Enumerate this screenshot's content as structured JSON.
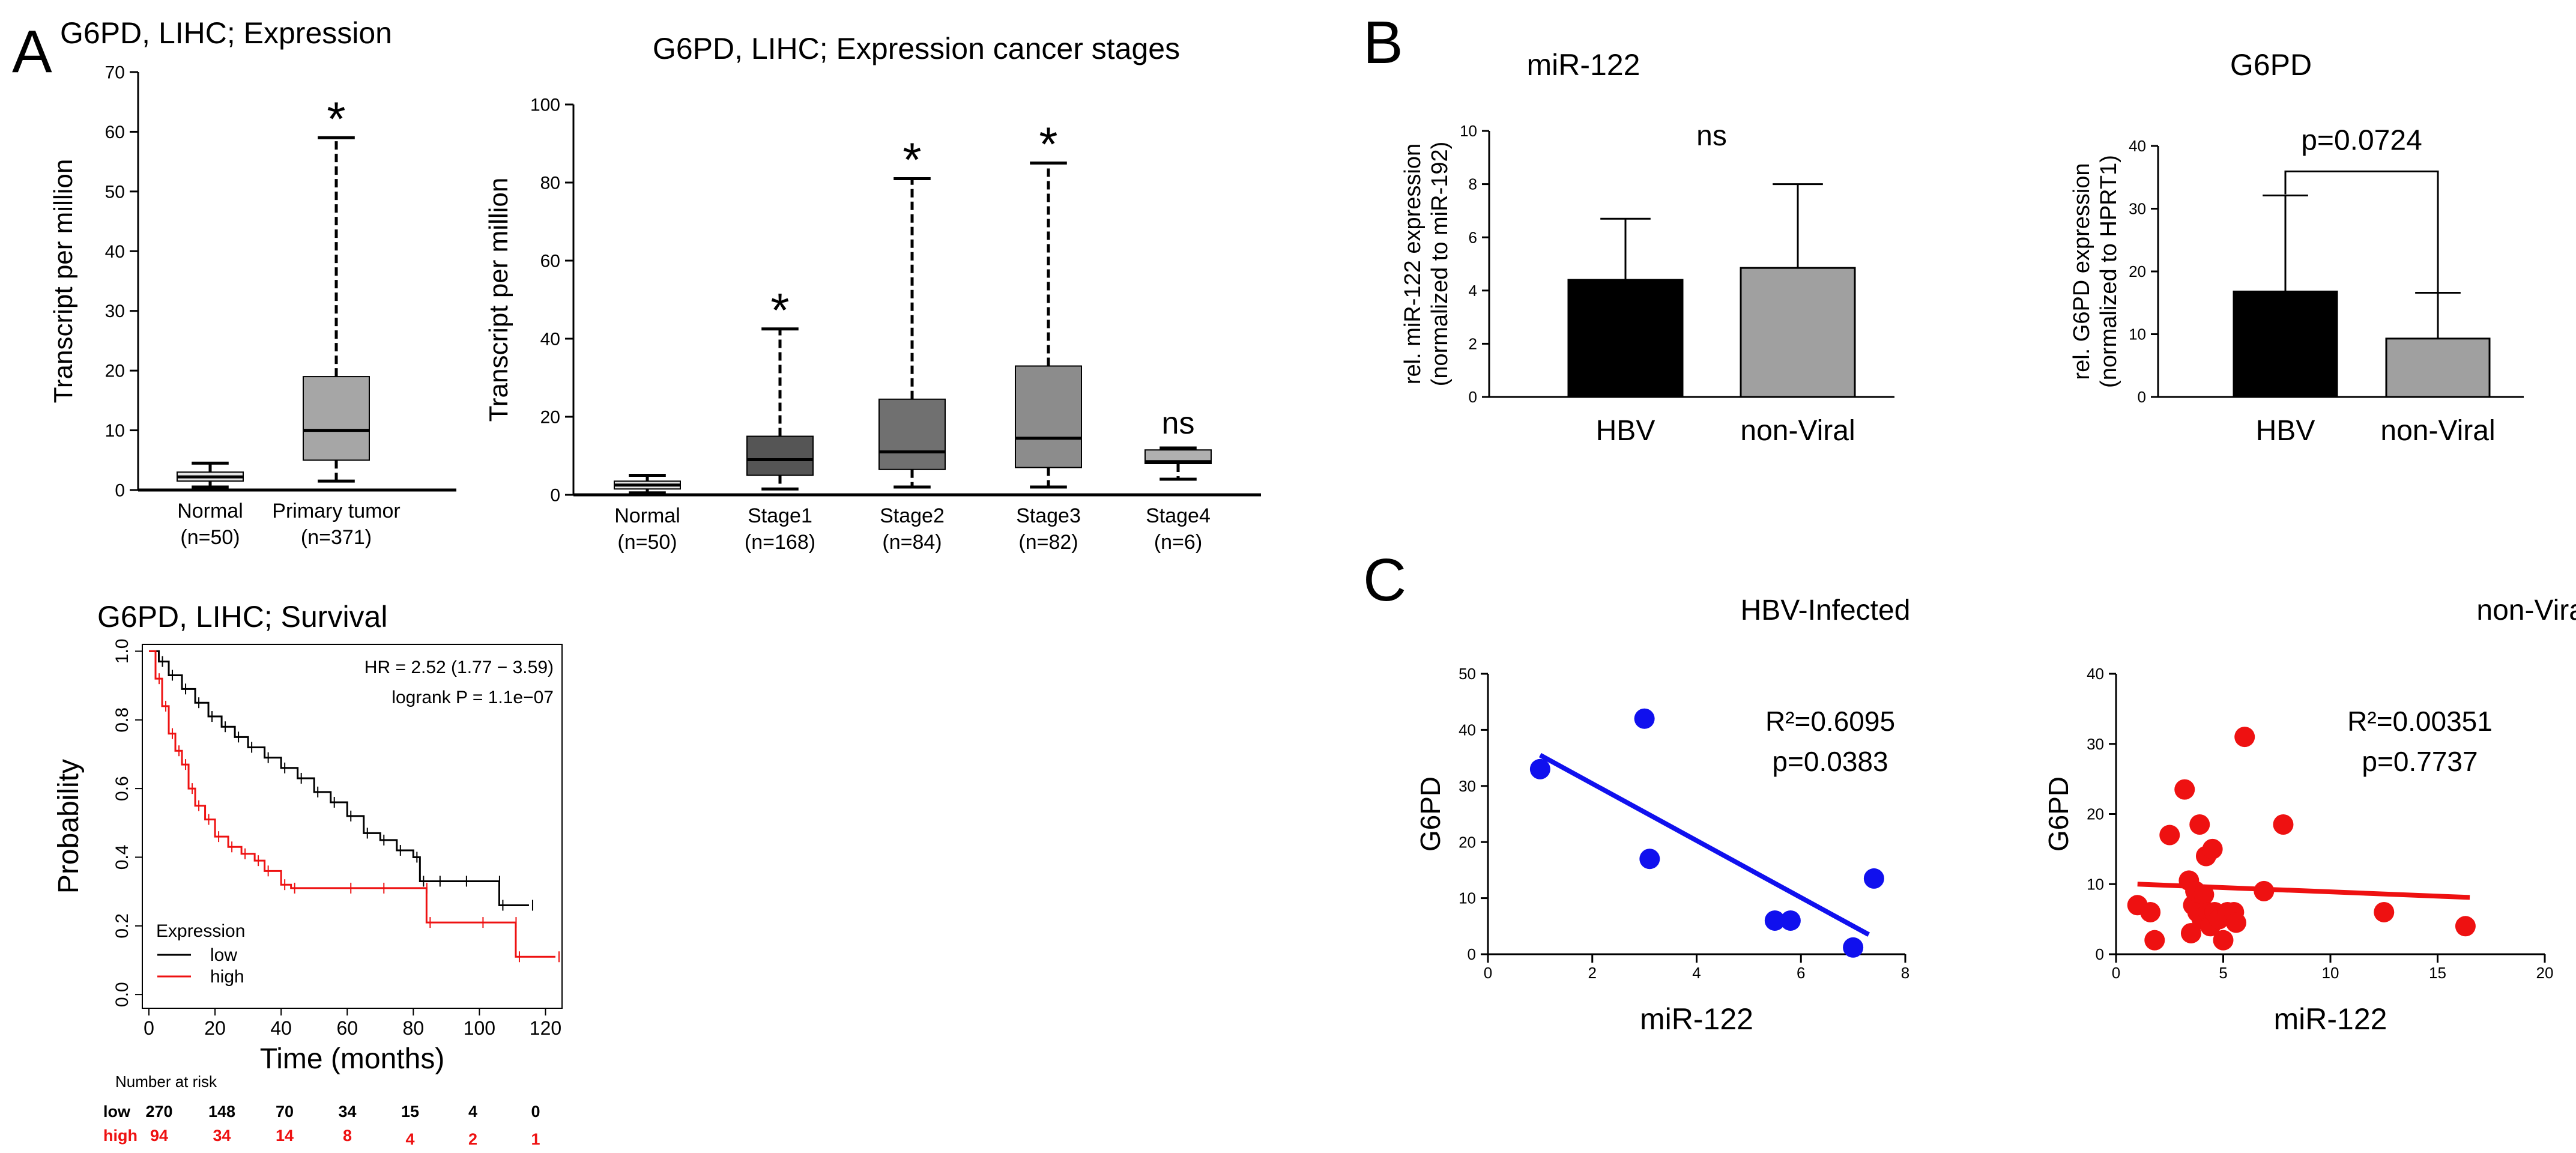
{
  "panel_labels": {
    "a": "A",
    "b": "B",
    "c": "C"
  },
  "colors": {
    "black": "#000000",
    "dark_gray": "#555555",
    "mid_gray": "#999999",
    "light_gray": "#c8c8c8",
    "blue": "#1010ee",
    "red": "#ee1111",
    "km_low": "#000000",
    "km_high": "#ee1111"
  },
  "chart_data": [
    {
      "id": "a1",
      "type": "boxplot",
      "title": "G6PD, LIHC; Expression",
      "ylabel": "Transcript per million",
      "xlabel": "",
      "ylim": [
        0,
        70
      ],
      "yticks": [
        0,
        10,
        20,
        30,
        40,
        50,
        60,
        70
      ],
      "categories": [
        {
          "label": "Normal",
          "n": "(n=50)",
          "min": 0.5,
          "q1": 1.5,
          "median": 2.2,
          "q3": 3.0,
          "max": 4.5,
          "color": "#e6e6e6",
          "sig": ""
        },
        {
          "label": "Primary tumor",
          "n": "(n=371)",
          "min": 1.5,
          "q1": 5.0,
          "median": 10.0,
          "q3": 19.0,
          "max": 59.0,
          "color": "#a6a6a6",
          "sig": "*"
        }
      ]
    },
    {
      "id": "a2",
      "type": "boxplot",
      "title": "G6PD, LIHC; Expression cancer stages",
      "ylabel": "Transcript per million",
      "xlabel": "",
      "ylim": [
        0,
        100
      ],
      "yticks": [
        0,
        20,
        40,
        60,
        80,
        100
      ],
      "categories": [
        {
          "label": "Normal",
          "n": "(n=50)",
          "min": 0.5,
          "q1": 1.5,
          "median": 2.5,
          "q3": 3.5,
          "max": 5.0,
          "color": "#e6e6e6",
          "sig": ""
        },
        {
          "label": "Stage1",
          "n": "(n=168)",
          "min": 1.5,
          "q1": 5.0,
          "median": 9.0,
          "q3": 15.0,
          "max": 42.5,
          "color": "#555555",
          "sig": "*"
        },
        {
          "label": "Stage2",
          "n": "(n=84)",
          "min": 2.0,
          "q1": 6.5,
          "median": 11.0,
          "q3": 24.5,
          "max": 81.0,
          "color": "#707070",
          "sig": "*"
        },
        {
          "label": "Stage3",
          "n": "(n=82)",
          "min": 2.0,
          "q1": 7.0,
          "median": 14.5,
          "q3": 33.0,
          "max": 85.0,
          "color": "#8c8c8c",
          "sig": "*"
        },
        {
          "label": "Stage4",
          "n": "(n=6)",
          "min": 4.0,
          "q1": 8.0,
          "median": 8.5,
          "q3": 11.5,
          "max": 12.0,
          "color": "#b0b0b0",
          "sig": "ns"
        }
      ]
    },
    {
      "id": "a3",
      "type": "kaplan-meier",
      "title": "G6PD, LIHC; Survival",
      "xlabel": "Time (months)",
      "ylabel": "Probability",
      "xlim": [
        -2,
        125
      ],
      "ylim": [
        -0.04,
        1.02
      ],
      "xticks": [
        0,
        20,
        40,
        60,
        80,
        100,
        120
      ],
      "yticks": [
        0.0,
        0.2,
        0.4,
        0.6,
        0.8,
        1.0
      ],
      "annotations": [
        "HR = 2.52 (1.77 − 3.59)",
        "logrank P = 1.1e−07"
      ],
      "legend_title": "Expression",
      "series": [
        {
          "name": "low",
          "color": "#000000",
          "points": [
            [
              0,
              1.0
            ],
            [
              3,
              0.97
            ],
            [
              6,
              0.93
            ],
            [
              10,
              0.89
            ],
            [
              14,
              0.85
            ],
            [
              18,
              0.81
            ],
            [
              22,
              0.78
            ],
            [
              26,
              0.75
            ],
            [
              30,
              0.72
            ],
            [
              35,
              0.69
            ],
            [
              40,
              0.66
            ],
            [
              45,
              0.63
            ],
            [
              50,
              0.59
            ],
            [
              55,
              0.56
            ],
            [
              60,
              0.52
            ],
            [
              65,
              0.47
            ],
            [
              70,
              0.45
            ],
            [
              75,
              0.42
            ],
            [
              80,
              0.4
            ],
            [
              82,
              0.33
            ],
            [
              87,
              0.33
            ],
            [
              95,
              0.33
            ],
            [
              105,
              0.33
            ],
            [
              106,
              0.26
            ],
            [
              115,
              0.26
            ]
          ]
        },
        {
          "name": "high",
          "color": "#ee1111",
          "points": [
            [
              0,
              1.0
            ],
            [
              2,
              0.92
            ],
            [
              4,
              0.84
            ],
            [
              6,
              0.76
            ],
            [
              8,
              0.71
            ],
            [
              10,
              0.67
            ],
            [
              12,
              0.6
            ],
            [
              14,
              0.55
            ],
            [
              17,
              0.51
            ],
            [
              20,
              0.46
            ],
            [
              24,
              0.43
            ],
            [
              28,
              0.41
            ],
            [
              32,
              0.39
            ],
            [
              35,
              0.36
            ],
            [
              40,
              0.32
            ],
            [
              43,
              0.31
            ],
            [
              60,
              0.31
            ],
            [
              70,
              0.31
            ],
            [
              83,
              0.31
            ],
            [
              84,
              0.21
            ],
            [
              100,
              0.21
            ],
            [
              110,
              0.21
            ],
            [
              111,
              0.11
            ],
            [
              123,
              0.11
            ]
          ]
        }
      ],
      "risk_table": {
        "title": "Number at risk",
        "times": [
          0,
          20,
          40,
          60,
          80,
          100,
          120
        ],
        "rows": [
          {
            "name": "low",
            "values": [
              "270",
              "148",
              "70",
              "34",
              "15",
              "4",
              "0"
            ],
            "color": "#000000"
          },
          {
            "name": "high",
            "values": [
              "94",
              "34",
              "14",
              "8",
              "4",
              "2",
              "1"
            ],
            "color": "#ee1111"
          }
        ]
      }
    },
    {
      "id": "b1",
      "type": "bar",
      "title": "miR-122",
      "ylabel": "rel. miR-122 expression",
      "ylabel2": "(normalized to miR-192)",
      "ylim": [
        0,
        10
      ],
      "yticks": [
        0,
        2,
        4,
        6,
        8,
        10
      ],
      "categories": [
        "HBV",
        "non-Viral"
      ],
      "values": [
        4.4,
        4.85
      ],
      "errors": [
        2.3,
        3.15
      ],
      "colors": [
        "#000000",
        "#a0a0a0"
      ],
      "annotation": "ns"
    },
    {
      "id": "b2",
      "type": "bar",
      "title": "G6PD",
      "ylabel": "rel. G6PD expression",
      "ylabel2": "(normalized to HPRT1)",
      "ylim": [
        0,
        40
      ],
      "yticks": [
        0,
        10,
        20,
        30,
        40
      ],
      "categories": [
        "HBV",
        "non-Viral"
      ],
      "values": [
        16.8,
        9.3
      ],
      "errors": [
        15.3,
        7.3
      ],
      "colors": [
        "#000000",
        "#a0a0a0"
      ],
      "annotation": "p=0.0724"
    },
    {
      "id": "c1",
      "type": "scatter",
      "title": "HBV-Infected",
      "xlabel": "miR-122",
      "ylabel": "G6PD",
      "xlim": [
        0,
        8
      ],
      "ylim": [
        0,
        50
      ],
      "xticks": [
        0,
        2,
        4,
        6,
        8
      ],
      "yticks": [
        0,
        10,
        20,
        30,
        40,
        50
      ],
      "color": "#1010ee",
      "x": [
        1.0,
        3.0,
        3.1,
        5.5,
        5.8,
        7.0,
        7.4
      ],
      "y": [
        33,
        42,
        17,
        6,
        6,
        1.2,
        13.5
      ],
      "fit": {
        "x": [
          1.0,
          7.3
        ],
        "y": [
          35.5,
          3.5
        ]
      },
      "stat1": "R²=0.6095",
      "stat2": "p=0.0383"
    },
    {
      "id": "c2",
      "type": "scatter",
      "title": "non-Viral",
      "xlabel": "miR-122",
      "ylabel": "G6PD",
      "xlim": [
        0,
        20
      ],
      "ylim": [
        0,
        40
      ],
      "xticks": [
        0,
        5,
        10,
        15,
        20
      ],
      "yticks": [
        0,
        10,
        20,
        30,
        40
      ],
      "color": "#ee1111",
      "x": [
        1.0,
        1.6,
        1.8,
        2.5,
        3.2,
        3.4,
        3.5,
        3.6,
        3.7,
        3.8,
        3.9,
        4.0,
        4.1,
        4.2,
        4.3,
        4.4,
        4.5,
        4.6,
        4.8,
        5.0,
        5.2,
        5.5,
        5.6,
        6.0,
        6.9,
        7.8,
        12.5,
        16.3
      ],
      "y": [
        7,
        6,
        2,
        17,
        23.5,
        10.5,
        3,
        7,
        9,
        6,
        18.5,
        5,
        8.5,
        14,
        6,
        4,
        15,
        6,
        5,
        2,
        6,
        6,
        4.5,
        31,
        9,
        18.5,
        6,
        4
      ],
      "fit": {
        "x": [
          1.0,
          16.5
        ],
        "y": [
          10.0,
          8.1
        ]
      },
      "stat1": "R²=0.00351",
      "stat2": "p=0.7737"
    }
  ]
}
